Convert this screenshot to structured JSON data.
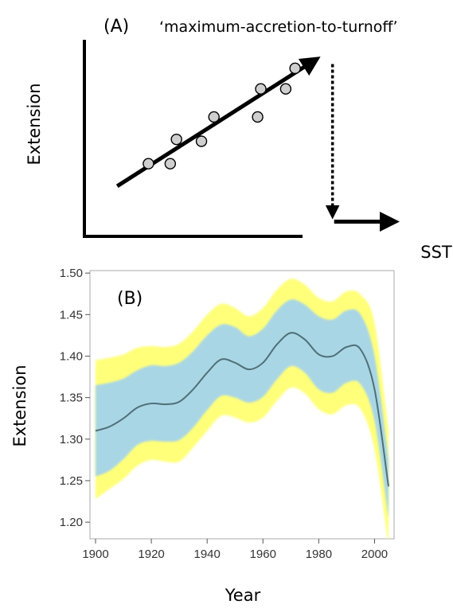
{
  "chart_data": [
    {
      "panel_label": "(A)",
      "type": "scatter",
      "title": "‘maximum-accretion-to-turnoff’",
      "xlabel": "SST",
      "ylabel": "Extension",
      "points": [
        [
          0.2,
          0.38
        ],
        [
          0.27,
          0.38
        ],
        [
          0.29,
          0.51
        ],
        [
          0.37,
          0.5
        ],
        [
          0.41,
          0.63
        ],
        [
          0.55,
          0.63
        ],
        [
          0.56,
          0.78
        ],
        [
          0.64,
          0.78
        ],
        [
          0.67,
          0.89
        ]
      ],
      "trend": {
        "from": [
          0.1,
          0.26
        ],
        "to": [
          0.73,
          0.93
        ]
      },
      "turnoff": {
        "at_x": 0.79,
        "drop_to_y": 0.07,
        "after_to_x": 1.0
      }
    },
    {
      "panel_label": "(B)",
      "type": "area",
      "xlabel": "Year",
      "ylabel": "Extension",
      "xlim": [
        1898,
        2007
      ],
      "ylim": [
        1.18,
        1.503
      ],
      "xticks": [
        "1900",
        "1920",
        "1940",
        "1960",
        "1980",
        "2000"
      ],
      "yticks": [
        "1.20",
        "1.25",
        "1.30",
        "1.35",
        "1.40",
        "1.45",
        "1.50"
      ],
      "x": [
        1900,
        1905,
        1910,
        1915,
        1920,
        1925,
        1930,
        1935,
        1940,
        1945,
        1950,
        1955,
        1960,
        1965,
        1970,
        1975,
        1980,
        1985,
        1990,
        1995,
        2000,
        2005
      ],
      "series": [
        {
          "name": "",
          "values": [
            1.31,
            1.315,
            1.325,
            1.338,
            1.343,
            1.342,
            1.345,
            1.36,
            1.38,
            1.396,
            1.392,
            1.384,
            1.392,
            1.414,
            1.428,
            1.42,
            1.402,
            1.4,
            1.411,
            1.408,
            1.36,
            1.243
          ]
        }
      ],
      "inner_band": {
        "upper": [
          1.365,
          1.368,
          1.373,
          1.383,
          1.389,
          1.388,
          1.392,
          1.406,
          1.425,
          1.438,
          1.435,
          1.424,
          1.433,
          1.455,
          1.468,
          1.462,
          1.448,
          1.444,
          1.455,
          1.45,
          1.4,
          1.275
        ],
        "lower": [
          1.255,
          1.262,
          1.276,
          1.293,
          1.298,
          1.297,
          1.299,
          1.314,
          1.335,
          1.352,
          1.35,
          1.344,
          1.351,
          1.372,
          1.388,
          1.38,
          1.36,
          1.356,
          1.368,
          1.366,
          1.322,
          1.205
        ],
        "color": "#a9d6e5"
      },
      "outer_band": {
        "upper": [
          1.395,
          1.398,
          1.402,
          1.41,
          1.412,
          1.411,
          1.415,
          1.43,
          1.45,
          1.463,
          1.458,
          1.448,
          1.458,
          1.48,
          1.493,
          1.486,
          1.47,
          1.466,
          1.478,
          1.474,
          1.44,
          1.31
        ],
        "lower": [
          1.228,
          1.24,
          1.252,
          1.268,
          1.275,
          1.273,
          1.273,
          1.29,
          1.31,
          1.328,
          1.326,
          1.32,
          1.326,
          1.346,
          1.362,
          1.355,
          1.336,
          1.33,
          1.341,
          1.336,
          1.287,
          1.17
        ],
        "color": "#ffff7a"
      },
      "line_color": "#4f6f78"
    }
  ]
}
